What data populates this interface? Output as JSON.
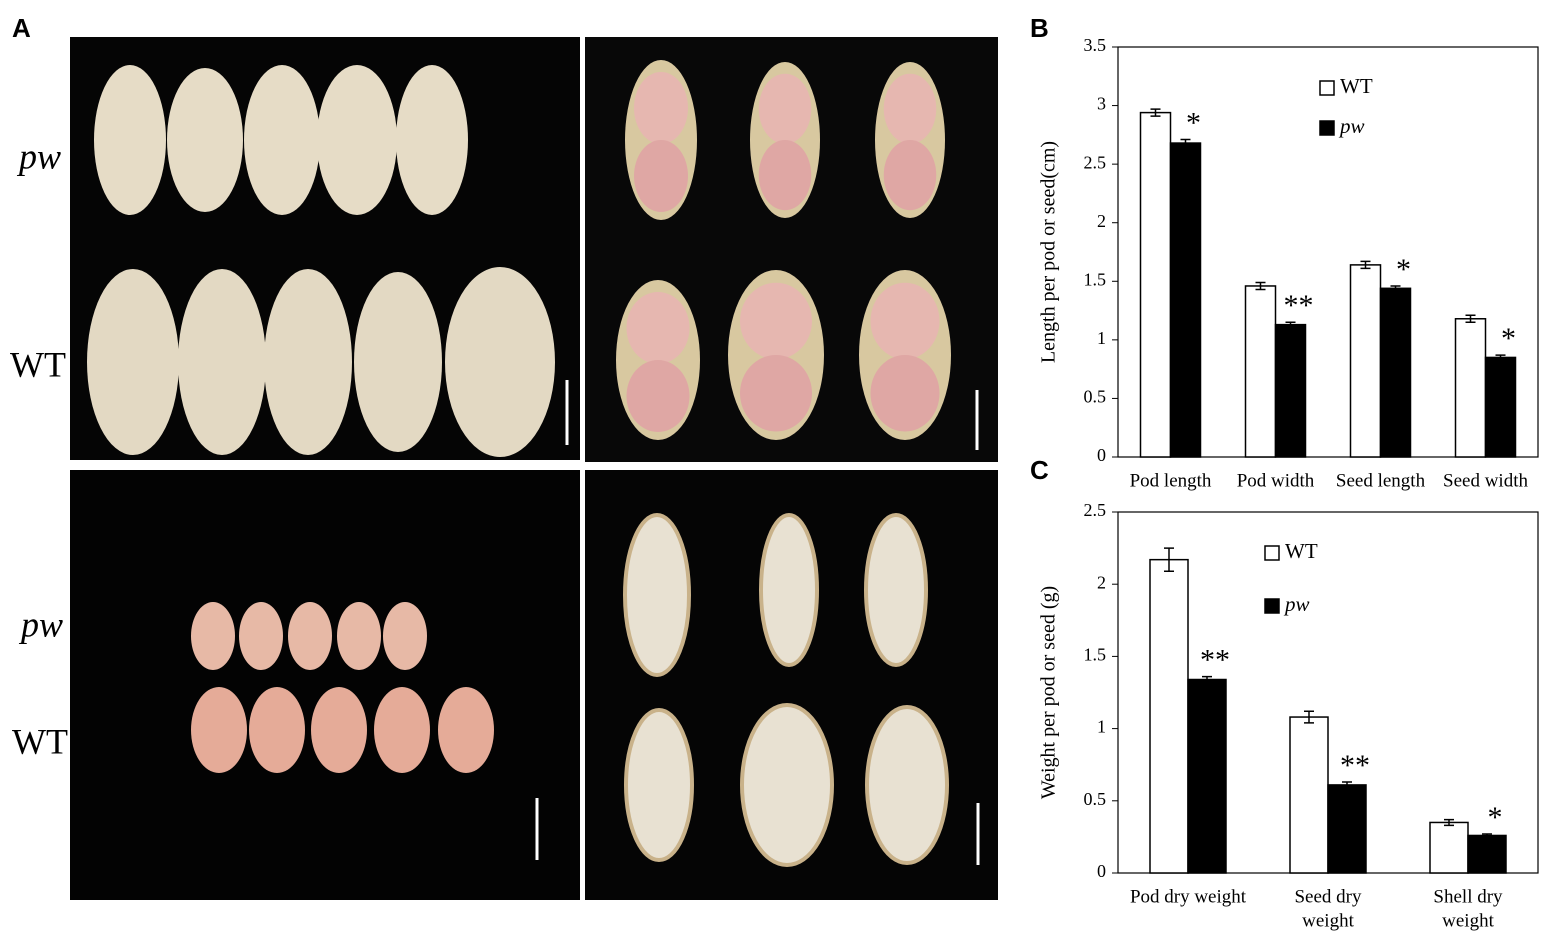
{
  "panel_a": {
    "label": "A",
    "row_labels": [
      "pw",
      "WT",
      "pw",
      "WT"
    ]
  },
  "chart_data": [
    {
      "type": "bar",
      "label": "B",
      "ylabel": "Length per pod or seed(cm)",
      "categories": [
        [
          "Pod length"
        ],
        [
          "Pod width"
        ],
        [
          "Seed length"
        ],
        [
          "Seed width"
        ]
      ],
      "series": [
        {
          "name": "WT",
          "color": "#ffffff",
          "values": [
            2.94,
            1.46,
            1.64,
            1.18
          ],
          "errors": [
            0.03,
            0.03,
            0.03,
            0.03
          ]
        },
        {
          "name": "pw",
          "color": "#000000",
          "values": [
            2.68,
            1.13,
            1.44,
            0.85
          ],
          "errors": [
            0.03,
            0.02,
            0.02,
            0.02
          ],
          "annotations": [
            "*",
            "**",
            "*",
            "*"
          ]
        }
      ],
      "ylim": [
        0,
        3.5
      ],
      "yticks": [
        0,
        0.5,
        1,
        1.5,
        2,
        2.5,
        3,
        3.5
      ]
    },
    {
      "type": "bar",
      "label": "C",
      "ylabel": "Weight per pod or seed (g)",
      "categories": [
        [
          "Pod dry weight"
        ],
        [
          "Seed dry",
          "weight"
        ],
        [
          "Shell dry",
          "weight"
        ]
      ],
      "series": [
        {
          "name": "WT",
          "color": "#ffffff",
          "values": [
            2.17,
            1.08,
            0.35
          ],
          "errors": [
            0.08,
            0.04,
            0.02
          ]
        },
        {
          "name": "pw",
          "color": "#000000",
          "values": [
            1.34,
            0.61,
            0.26
          ],
          "errors": [
            0.02,
            0.02,
            0.01
          ],
          "annotations": [
            "**",
            "**",
            "*"
          ]
        }
      ],
      "ylim": [
        0,
        2.5
      ],
      "yticks": [
        0,
        0.5,
        1,
        1.5,
        2,
        2.5
      ]
    }
  ]
}
